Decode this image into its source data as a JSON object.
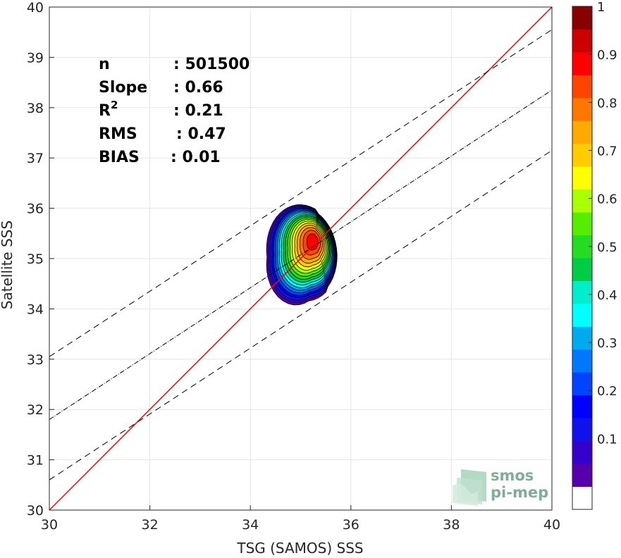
{
  "chart_data": {
    "type": "heatmap",
    "kind": "density scatter (normalized contour)",
    "xlabel": "TSG (SAMOS) SSS",
    "ylabel": "Satellite SSS",
    "xlim": [
      30,
      40
    ],
    "ylim": [
      30,
      40
    ],
    "xticks": [
      "30",
      "32",
      "34",
      "36",
      "38",
      "40"
    ],
    "yticks": [
      "30",
      "31",
      "32",
      "33",
      "34",
      "35",
      "36",
      "37",
      "38",
      "39",
      "40"
    ],
    "grid": true,
    "density_peak": {
      "x": 35.25,
      "y": 35.35
    },
    "stats": [
      {
        "label": "n",
        "sep": ":",
        "value": "501500"
      },
      {
        "label": "Slope",
        "sep": ":",
        "value": "0.66"
      },
      {
        "label": "R",
        "sup": "2",
        "sep": ":",
        "value": "0.21"
      },
      {
        "label": "RMS",
        "sep": ":",
        "value": "0.47"
      },
      {
        "label": "BIAS",
        "sep": ":",
        "value": "0.01"
      }
    ],
    "lines": [
      {
        "name": "one-to-one",
        "color": "#ff0000",
        "style": "solid",
        "x": [
          30,
          40
        ],
        "y": [
          30,
          40
        ]
      },
      {
        "name": "regression",
        "color": "#000000",
        "style": "dash-dot",
        "x": [
          30,
          40
        ],
        "y": [
          31.8,
          38.35
        ]
      },
      {
        "name": "regression-upper",
        "color": "#000000",
        "style": "dashed",
        "x": [
          30,
          40
        ],
        "y": [
          33.05,
          39.55
        ]
      },
      {
        "name": "regression-lower",
        "color": "#000000",
        "style": "dashed",
        "x": [
          30,
          40
        ],
        "y": [
          30.6,
          37.15
        ]
      }
    ],
    "contour_levels": [
      0.05,
      0.1,
      0.15,
      0.2,
      0.25,
      0.3,
      0.35,
      0.4,
      0.45,
      0.5,
      0.55,
      0.6,
      0.65,
      0.7,
      0.75,
      0.8,
      0.85,
      0.9,
      0.95,
      1.0
    ],
    "colorbar": {
      "range": [
        0,
        1
      ],
      "ticks": [
        "0.1",
        "0.2",
        "0.3",
        "0.4",
        "0.5",
        "0.6",
        "0.7",
        "0.8",
        "0.9",
        "1"
      ],
      "bands": [
        "#ffffff",
        "#5500aa",
        "#3300cc",
        "#1111ee",
        "#0000ff",
        "#0044ff",
        "#0077ff",
        "#00aaee",
        "#00ffff",
        "#00eecc",
        "#00cc44",
        "#22dd22",
        "#55ee00",
        "#aaff00",
        "#ffff00",
        "#ffcc00",
        "#ffaa00",
        "#ff7700",
        "#ff4400",
        "#ff0000",
        "#cc0000",
        "#880000"
      ]
    }
  },
  "logo": {
    "line1": "smos",
    "line2": "pi-mep"
  }
}
